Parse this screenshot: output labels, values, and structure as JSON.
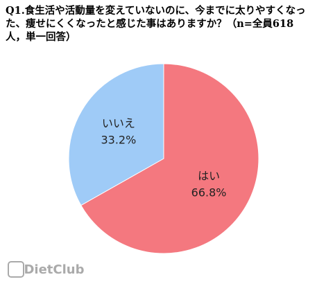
{
  "chart_data": {
    "type": "pie",
    "title": "Q1.食生活や活動量を変えていないのに、今までに太りやすくなった、痩せにくくなったと感じた事はありますか？（n=全員618人，単一回答）",
    "categories": [
      "はい",
      "いいえ"
    ],
    "values": [
      66.8,
      33.2
    ],
    "value_labels": [
      "66.8%",
      "33.2%"
    ],
    "colors": [
      "#f4787f",
      "#9fcbf7"
    ],
    "watermark": "DietClub"
  }
}
